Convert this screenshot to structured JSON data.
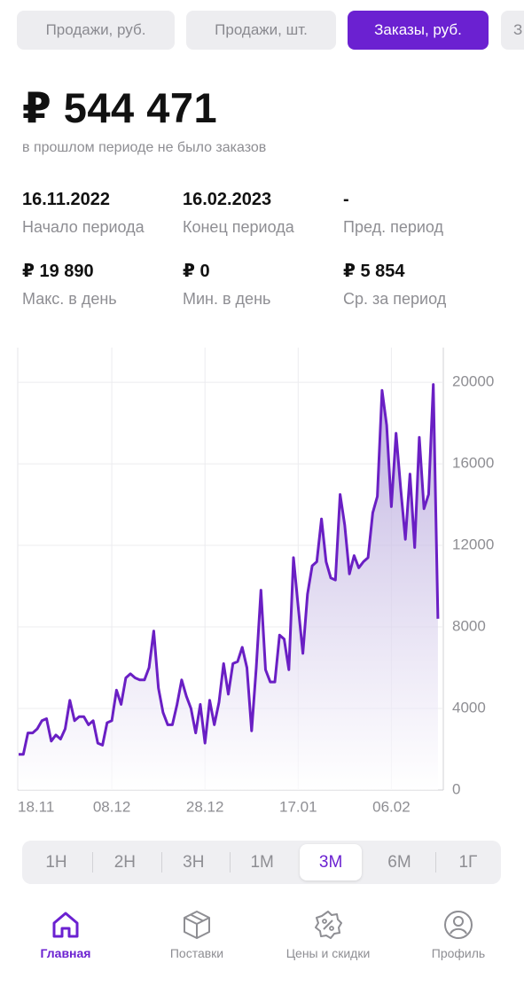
{
  "tabs": [
    "Продажи, руб.",
    "Продажи, шт.",
    "Заказы, руб.",
    "З"
  ],
  "active_tab": 2,
  "summary": {
    "amount": "₽ 544 471",
    "note": "в прошлом периоде не было заказов"
  },
  "stats": [
    {
      "value": "16.11.2022",
      "label": "Начало периода"
    },
    {
      "value": "16.02.2023",
      "label": "Конец периода"
    },
    {
      "value": "-",
      "label": "Пред. период"
    },
    {
      "value": "₽ 19 890",
      "label": "Макс. в день"
    },
    {
      "value": "₽ 0",
      "label": "Мин. в день"
    },
    {
      "value": "₽ 5 854",
      "label": "Ср. за период"
    }
  ],
  "chart_data": {
    "type": "area",
    "categories": [
      "18.11",
      null,
      null,
      null,
      null,
      null,
      null,
      null,
      null,
      null,
      null,
      null,
      null,
      null,
      null,
      null,
      null,
      null,
      null,
      null,
      "08.12",
      null,
      null,
      null,
      null,
      null,
      null,
      null,
      null,
      null,
      null,
      null,
      null,
      null,
      null,
      null,
      null,
      null,
      null,
      null,
      "28.12",
      null,
      null,
      null,
      null,
      null,
      null,
      null,
      null,
      null,
      null,
      null,
      null,
      null,
      null,
      null,
      null,
      null,
      null,
      null,
      "17.01",
      null,
      null,
      null,
      null,
      null,
      null,
      null,
      null,
      null,
      null,
      null,
      null,
      null,
      null,
      null,
      null,
      null,
      null,
      null,
      "06.02",
      null,
      null,
      null,
      null,
      null,
      null,
      null,
      null,
      null,
      null
    ],
    "values": [
      1750,
      1750,
      2800,
      2800,
      3000,
      3400,
      3500,
      2400,
      2700,
      2500,
      3000,
      4400,
      3400,
      3600,
      3600,
      3200,
      3400,
      2300,
      2200,
      3300,
      3400,
      4900,
      4200,
      5500,
      5700,
      5500,
      5400,
      5400,
      6000,
      7800,
      5000,
      3800,
      3200,
      3200,
      4200,
      5400,
      4600,
      4000,
      2800,
      4200,
      2300,
      4400,
      3200,
      4300,
      6200,
      4700,
      6200,
      6300,
      7000,
      6000,
      2900,
      6000,
      9800,
      5900,
      5300,
      5300,
      7600,
      7400,
      5900,
      11400,
      9000,
      6700,
      9600,
      11000,
      11200,
      13300,
      11200,
      10400,
      10300,
      14500,
      13000,
      10600,
      11500,
      10900,
      11200,
      11400,
      13600,
      14400,
      19600,
      17900,
      13900,
      17500,
      14800,
      12300,
      15500,
      11900,
      17300,
      13800,
      14500,
      19890,
      8400
    ],
    "color": "#6a1fc4",
    "ylim": [
      0,
      21700
    ],
    "yticks": [
      0,
      4000,
      8000,
      12000,
      16000,
      20000
    ],
    "grid": true
  },
  "ranges": [
    "1Н",
    "2Н",
    "3Н",
    "1М",
    "3М",
    "6М",
    "1Г"
  ],
  "active_range": 4,
  "nav": [
    "Главная",
    "Поставки",
    "Цены и скидки",
    "Профиль"
  ],
  "active_nav": 0
}
